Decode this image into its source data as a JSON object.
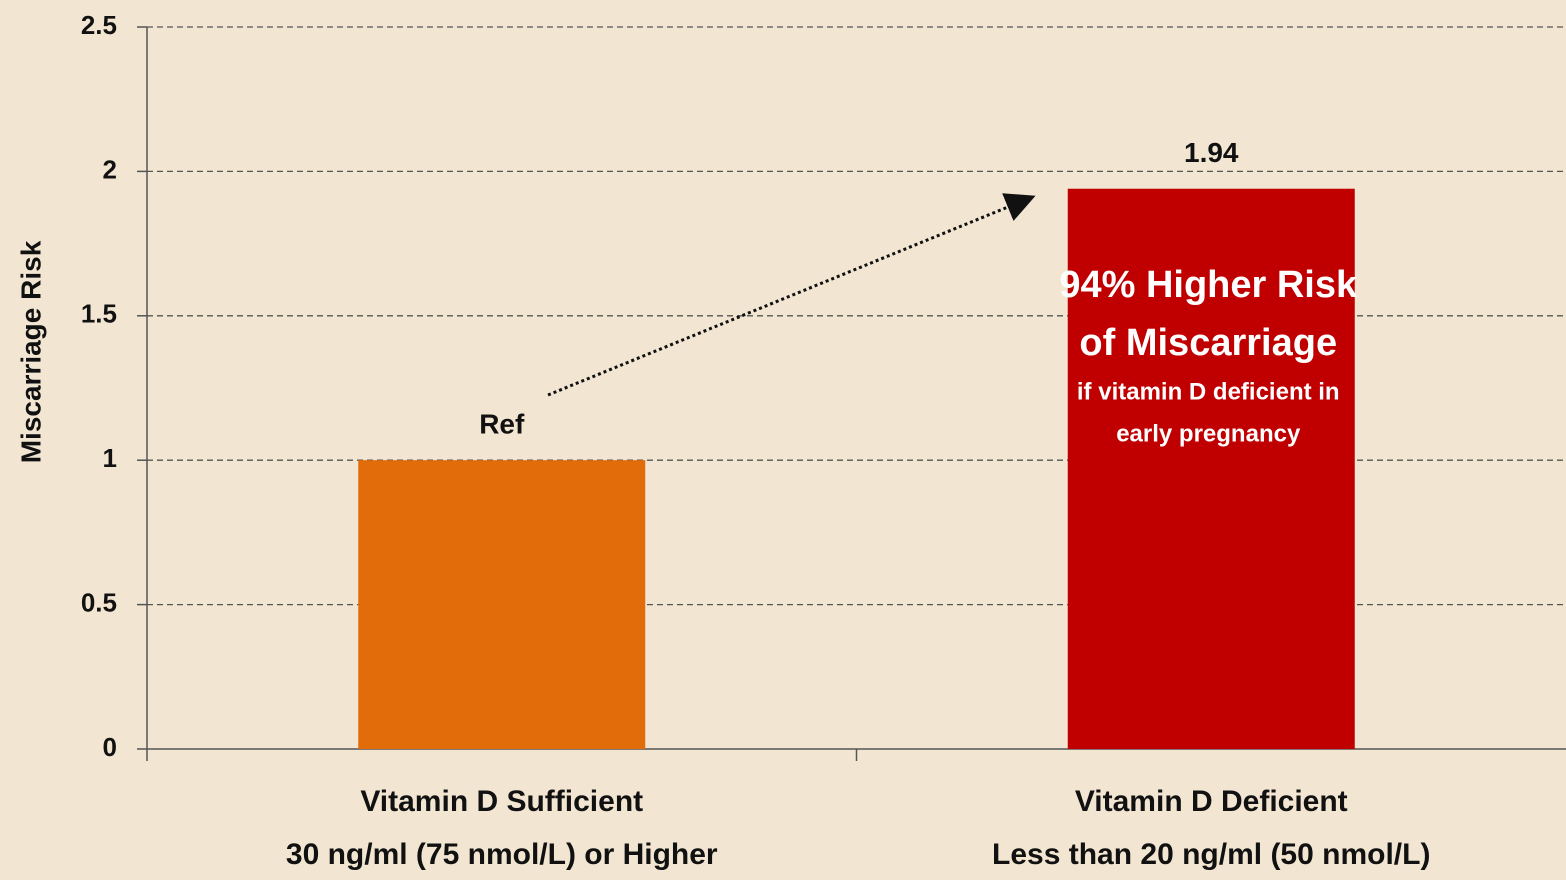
{
  "chart_data": {
    "type": "bar",
    "y_label": "Miscarriage Risk",
    "categories": [
      [
        "Vitamin D Sufficient",
        "30 ng/ml (75 nmol/L) or Higher"
      ],
      [
        "Vitamin D Deficient",
        "Less than 20 ng/ml (50 nmol/L)"
      ]
    ],
    "values": [
      1,
      1.94
    ],
    "value_labels": [
      "Ref",
      "1.94"
    ],
    "colors": [
      "#e36c0a",
      "#c00000"
    ],
    "ylim": [
      0,
      2.5
    ],
    "yticks": [
      0,
      0.5,
      1,
      1.5,
      2,
      2.5
    ],
    "grid": true,
    "annotation": {
      "title": [
        "94% Higher Risk",
        "of Miscarriage"
      ],
      "text": [
        "if vitamin D deficient in",
        "early pregnancy"
      ]
    }
  }
}
